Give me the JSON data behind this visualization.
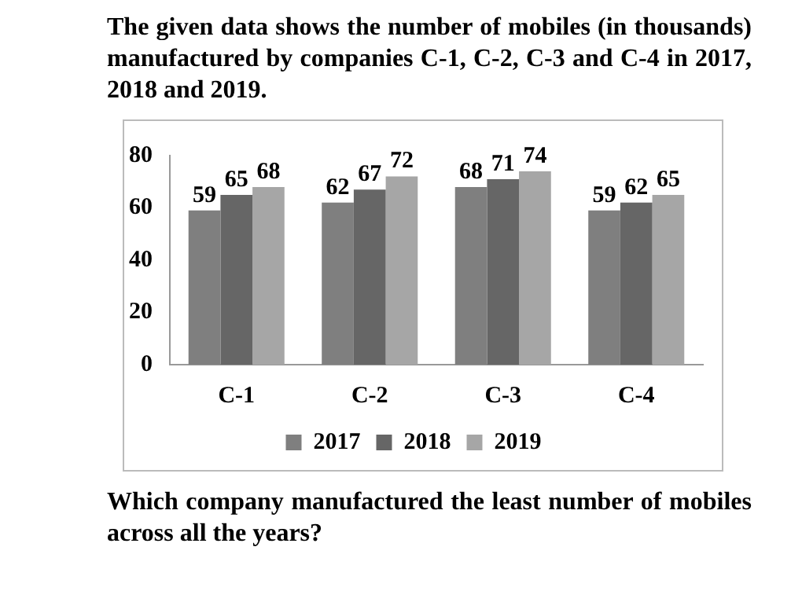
{
  "chart_data": {
    "type": "bar",
    "title": "The given data shows the number of mobiles (in thousands) manufactured by companies C-1, C-2, C-3 and C-4 in 2017, 2018 and 2019.",
    "categories": [
      "C-1",
      "C-2",
      "C-3",
      "C-4"
    ],
    "series": [
      {
        "name": "2017",
        "color": "#7f7f7f",
        "values": [
          59,
          62,
          68,
          59
        ]
      },
      {
        "name": "2018",
        "color": "#666666",
        "values": [
          65,
          67,
          71,
          62
        ]
      },
      {
        "name": "2019",
        "color": "#a6a6a6",
        "values": [
          68,
          72,
          74,
          65
        ]
      }
    ],
    "ylim": [
      0,
      80
    ],
    "yticks": [
      0,
      20,
      40,
      60,
      80
    ],
    "grid": false,
    "legend": "bottom",
    "data_labels": true,
    "annotations": [
      "Which company manufactured the least number of mobiles across all the years?"
    ]
  }
}
